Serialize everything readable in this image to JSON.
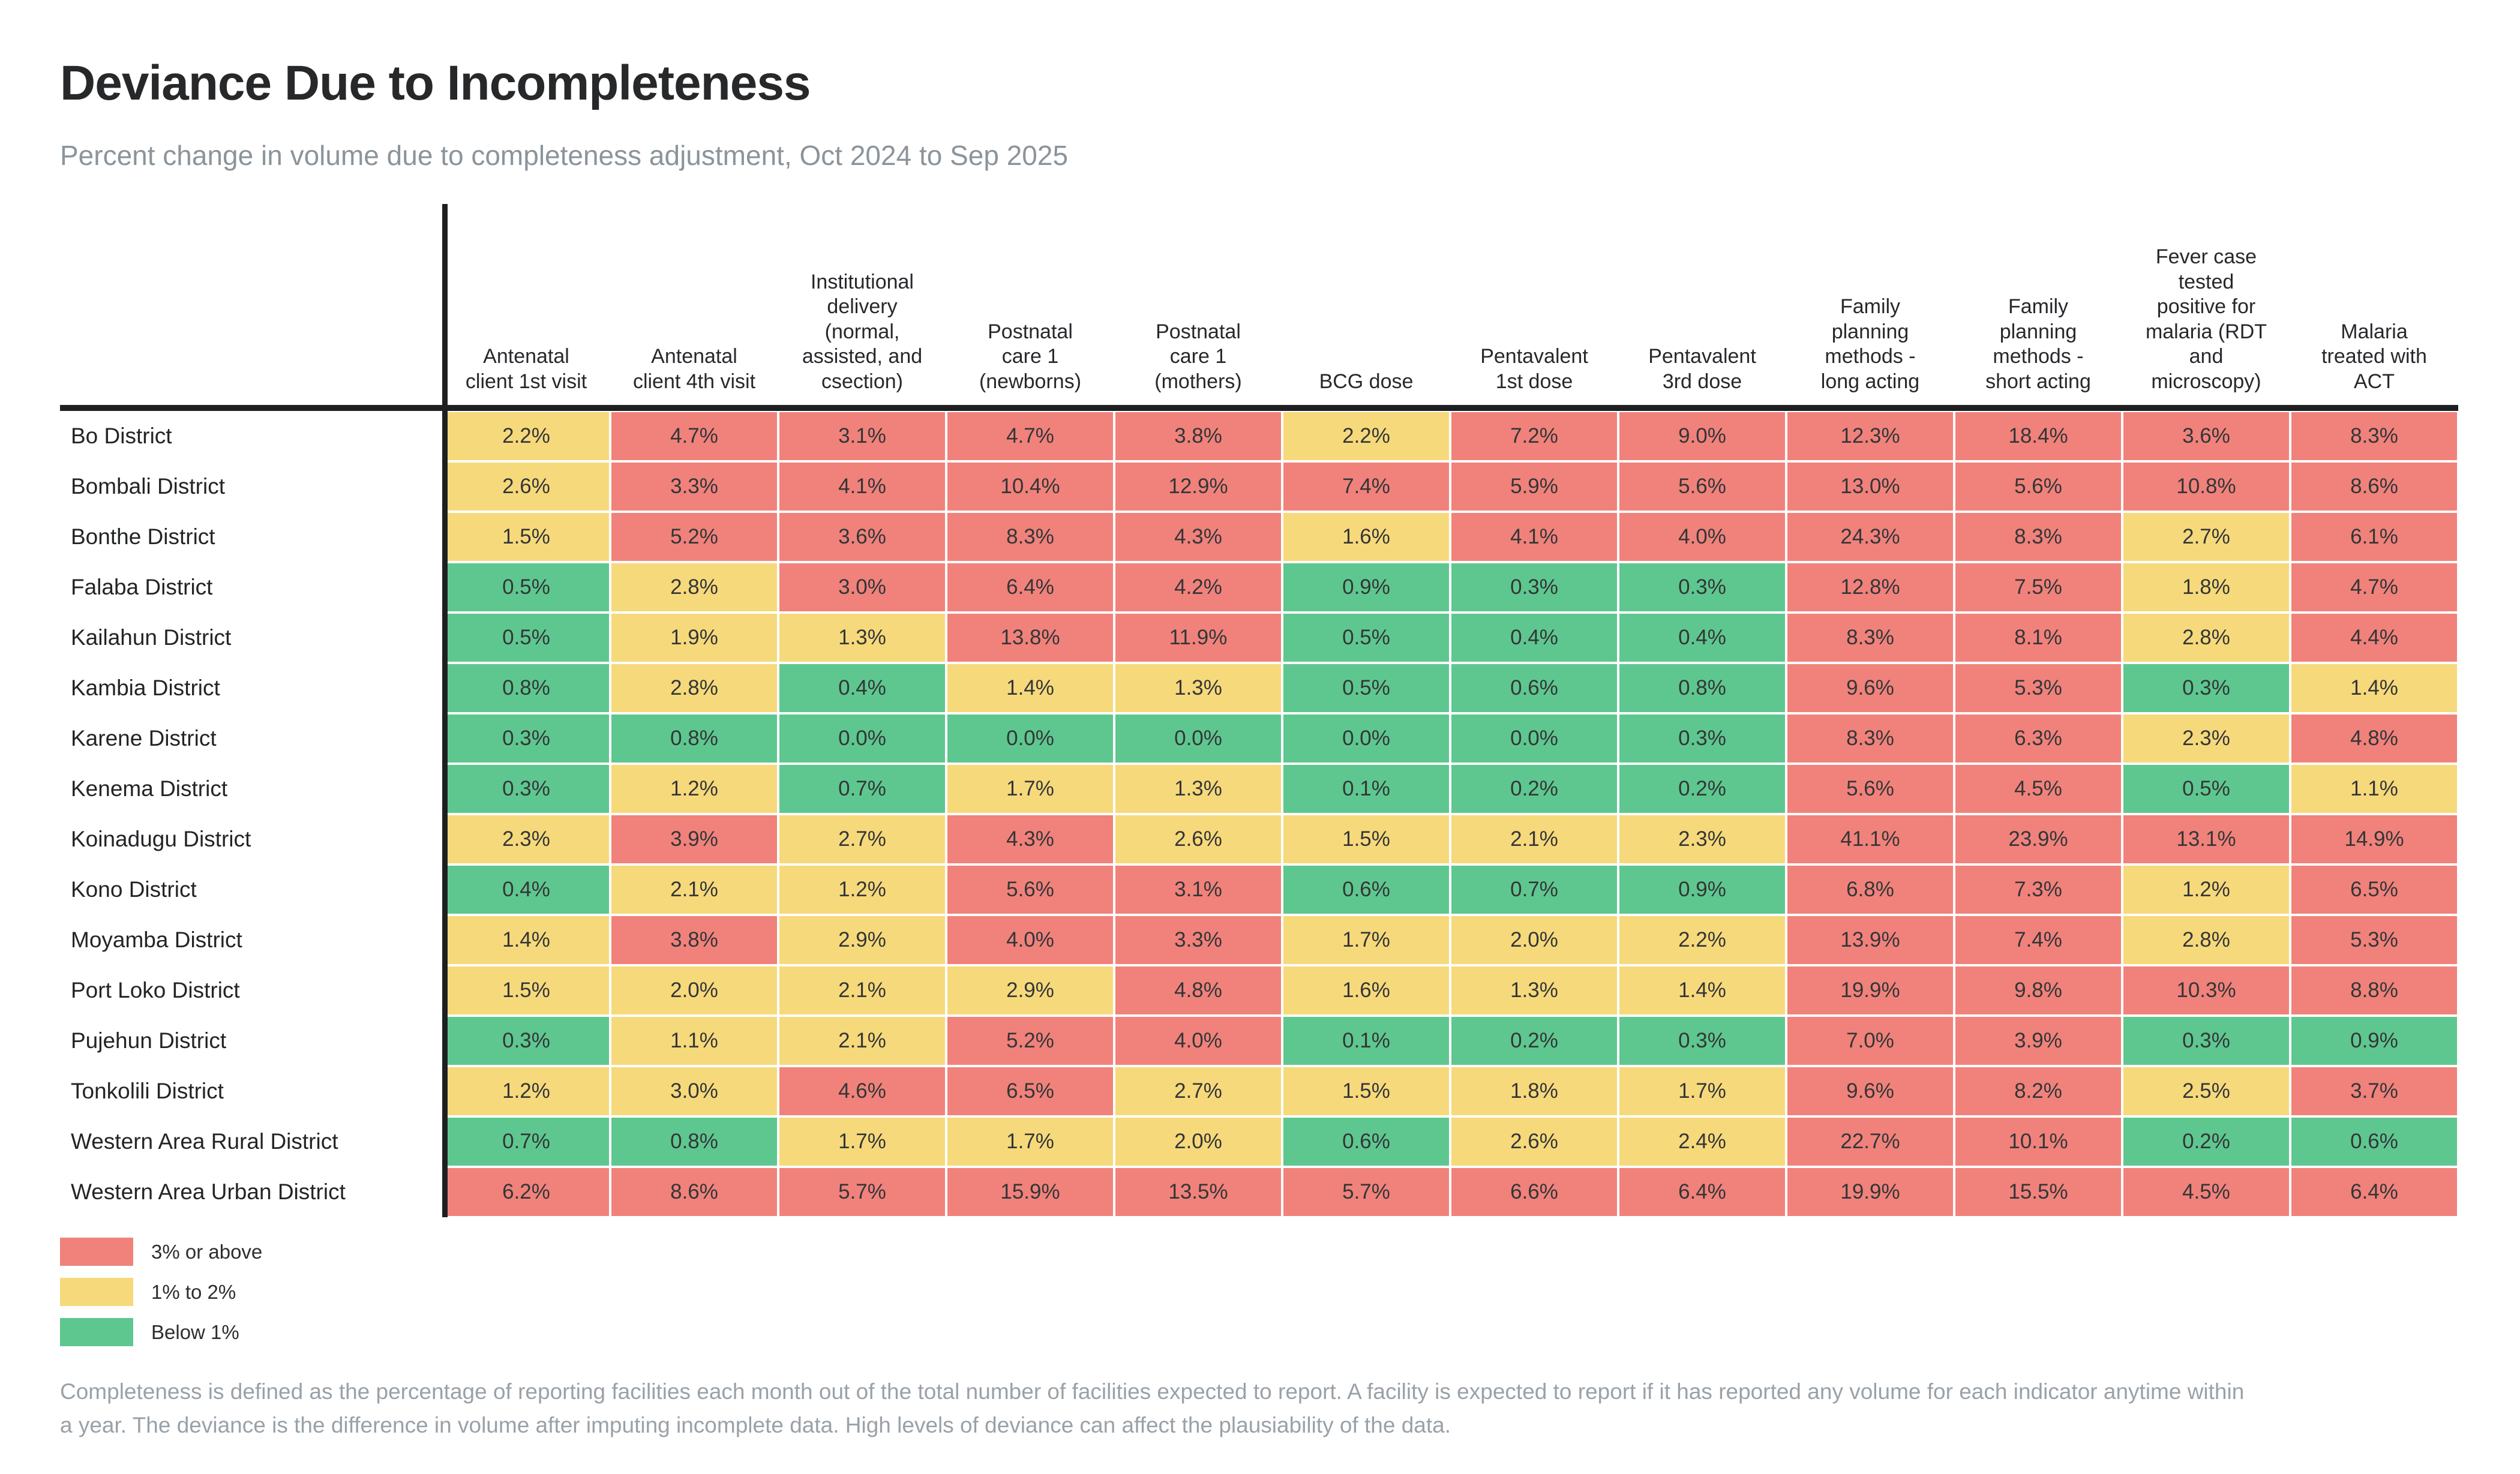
{
  "title": "Deviance Due to Incompleteness",
  "subtitle": "Percent change in volume due to completeness adjustment, Oct 2024 to Sep 2025",
  "colors": {
    "r": "#F0827B",
    "y": "#F6D97B",
    "g": "#5EC78F"
  },
  "legend": [
    {
      "label": "3% or above",
      "color_key": "r"
    },
    {
      "label": "1% to 2%",
      "color_key": "y"
    },
    {
      "label": "Below 1%",
      "color_key": "g"
    }
  ],
  "footnote": "Completeness is defined as the percentage of reporting facilities each month out of the total number of facilities expected to report. A facility is expected to report if it has reported any volume for each indicator anytime within\na year. The deviance is the difference in volume after imputing incomplete data. High levels of deviance can affect the plausiability of the data.",
  "chart_data": {
    "type": "heatmap",
    "unit": "%",
    "title": "Deviance Due to Incompleteness",
    "color_scale": {
      "r": "3% or above",
      "y": "1% to 2%",
      "g": "Below 1%"
    },
    "columns": [
      "Antenatal client 1st visit",
      "Antenatal client 4th visit",
      "Institutional delivery (normal, assisted, and csection)",
      "Postnatal care 1 (newborns)",
      "Postnatal care 1 (mothers)",
      "BCG dose",
      "Pentavalent 1st dose",
      "Pentavalent 3rd dose",
      "Family planning methods - long acting",
      "Family planning methods - short acting",
      "Fever case tested positive for malaria (RDT and microscopy)",
      "Malaria treated with ACT"
    ],
    "column_display": [
      "Antenatal\nclient 1st visit",
      "Antenatal\nclient 4th visit",
      "Institutional\ndelivery\n(normal,\nassisted, and\ncsection)",
      "Postnatal\ncare 1\n(newborns)",
      "Postnatal\ncare 1\n(mothers)",
      "BCG dose",
      "Pentavalent\n1st dose",
      "Pentavalent\n3rd dose",
      "Family\nplanning\nmethods -\nlong acting",
      "Family\nplanning\nmethods -\nshort acting",
      "Fever case\ntested\npositive for\nmalaria (RDT\nand\nmicroscopy)",
      "Malaria\ntreated with\nACT"
    ],
    "rows": [
      "Bo District",
      "Bombali District",
      "Bonthe District",
      "Falaba District",
      "Kailahun District",
      "Kambia District",
      "Karene District",
      "Kenema District",
      "Koinadugu District",
      "Kono District",
      "Moyamba District",
      "Port Loko District",
      "Pujehun District",
      "Tonkolili District",
      "Western Area Rural District",
      "Western Area Urban District"
    ],
    "values": [
      [
        2.2,
        4.7,
        3.1,
        4.7,
        3.8,
        2.2,
        7.2,
        9.0,
        12.3,
        18.4,
        3.6,
        8.3
      ],
      [
        2.6,
        3.3,
        4.1,
        10.4,
        12.9,
        7.4,
        5.9,
        5.6,
        13.0,
        5.6,
        10.8,
        8.6
      ],
      [
        1.5,
        5.2,
        3.6,
        8.3,
        4.3,
        1.6,
        4.1,
        4.0,
        24.3,
        8.3,
        2.7,
        6.1
      ],
      [
        0.5,
        2.8,
        3.0,
        6.4,
        4.2,
        0.9,
        0.3,
        0.3,
        12.8,
        7.5,
        1.8,
        4.7
      ],
      [
        0.5,
        1.9,
        1.3,
        13.8,
        11.9,
        0.5,
        0.4,
        0.4,
        8.3,
        8.1,
        2.8,
        4.4
      ],
      [
        0.8,
        2.8,
        0.4,
        1.4,
        1.3,
        0.5,
        0.6,
        0.8,
        9.6,
        5.3,
        0.3,
        1.4
      ],
      [
        0.3,
        0.8,
        0.0,
        0.0,
        0.0,
        0.0,
        0.0,
        0.3,
        8.3,
        6.3,
        2.3,
        4.8
      ],
      [
        0.3,
        1.2,
        0.7,
        1.7,
        1.3,
        0.1,
        0.2,
        0.2,
        5.6,
        4.5,
        0.5,
        1.1
      ],
      [
        2.3,
        3.9,
        2.7,
        4.3,
        2.6,
        1.5,
        2.1,
        2.3,
        41.1,
        23.9,
        13.1,
        14.9
      ],
      [
        0.4,
        2.1,
        1.2,
        5.6,
        3.1,
        0.6,
        0.7,
        0.9,
        6.8,
        7.3,
        1.2,
        6.5
      ],
      [
        1.4,
        3.8,
        2.9,
        4.0,
        3.3,
        1.7,
        2.0,
        2.2,
        13.9,
        7.4,
        2.8,
        5.3
      ],
      [
        1.5,
        2.0,
        2.1,
        2.9,
        4.8,
        1.6,
        1.3,
        1.4,
        19.9,
        9.8,
        10.3,
        8.8
      ],
      [
        0.3,
        1.1,
        2.1,
        5.2,
        4.0,
        0.1,
        0.2,
        0.3,
        7.0,
        3.9,
        0.3,
        0.9
      ],
      [
        1.2,
        3.0,
        4.6,
        6.5,
        2.7,
        1.5,
        1.8,
        1.7,
        9.6,
        8.2,
        2.5,
        3.7
      ],
      [
        0.7,
        0.8,
        1.7,
        1.7,
        2.0,
        0.6,
        2.6,
        2.4,
        22.7,
        10.1,
        0.2,
        0.6
      ],
      [
        6.2,
        8.6,
        5.7,
        15.9,
        13.5,
        5.7,
        6.6,
        6.4,
        19.9,
        15.5,
        4.5,
        6.4
      ]
    ],
    "cell_colors": [
      [
        "y",
        "r",
        "r",
        "r",
        "r",
        "y",
        "r",
        "r",
        "r",
        "r",
        "r",
        "r"
      ],
      [
        "y",
        "r",
        "r",
        "r",
        "r",
        "r",
        "r",
        "r",
        "r",
        "r",
        "r",
        "r"
      ],
      [
        "y",
        "r",
        "r",
        "r",
        "r",
        "y",
        "r",
        "r",
        "r",
        "r",
        "y",
        "r"
      ],
      [
        "g",
        "y",
        "r",
        "r",
        "r",
        "g",
        "g",
        "g",
        "r",
        "r",
        "y",
        "r"
      ],
      [
        "g",
        "y",
        "y",
        "r",
        "r",
        "g",
        "g",
        "g",
        "r",
        "r",
        "y",
        "r"
      ],
      [
        "g",
        "y",
        "g",
        "y",
        "y",
        "g",
        "g",
        "g",
        "r",
        "r",
        "g",
        "y"
      ],
      [
        "g",
        "g",
        "g",
        "g",
        "g",
        "g",
        "g",
        "g",
        "r",
        "r",
        "y",
        "r"
      ],
      [
        "g",
        "y",
        "g",
        "y",
        "y",
        "g",
        "g",
        "g",
        "r",
        "r",
        "g",
        "y"
      ],
      [
        "y",
        "r",
        "y",
        "r",
        "y",
        "y",
        "y",
        "y",
        "r",
        "r",
        "r",
        "r"
      ],
      [
        "g",
        "y",
        "y",
        "r",
        "r",
        "g",
        "g",
        "g",
        "r",
        "r",
        "y",
        "r"
      ],
      [
        "y",
        "r",
        "y",
        "r",
        "r",
        "y",
        "y",
        "y",
        "r",
        "r",
        "y",
        "r"
      ],
      [
        "y",
        "y",
        "y",
        "y",
        "r",
        "y",
        "y",
        "y",
        "r",
        "r",
        "r",
        "r"
      ],
      [
        "g",
        "y",
        "y",
        "r",
        "r",
        "g",
        "g",
        "g",
        "r",
        "r",
        "g",
        "g"
      ],
      [
        "y",
        "y",
        "r",
        "r",
        "y",
        "y",
        "y",
        "y",
        "r",
        "r",
        "y",
        "r"
      ],
      [
        "g",
        "g",
        "y",
        "y",
        "y",
        "g",
        "y",
        "y",
        "r",
        "r",
        "g",
        "g"
      ],
      [
        "r",
        "r",
        "r",
        "r",
        "r",
        "r",
        "r",
        "r",
        "r",
        "r",
        "r",
        "r"
      ]
    ]
  }
}
